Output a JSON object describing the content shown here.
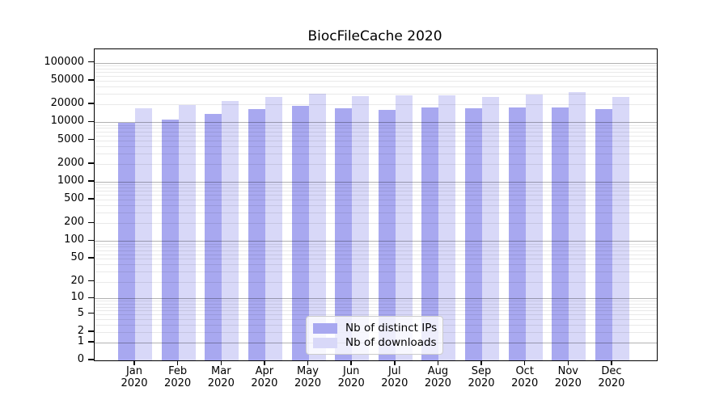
{
  "chart_data": {
    "type": "bar",
    "title": "BiocFileCache 2020",
    "categories": [
      {
        "month": "Jan",
        "year": "2020"
      },
      {
        "month": "Feb",
        "year": "2020"
      },
      {
        "month": "Mar",
        "year": "2020"
      },
      {
        "month": "Apr",
        "year": "2020"
      },
      {
        "month": "May",
        "year": "2020"
      },
      {
        "month": "Jun",
        "year": "2020"
      },
      {
        "month": "Jul",
        "year": "2020"
      },
      {
        "month": "Aug",
        "year": "2020"
      },
      {
        "month": "Sep",
        "year": "2020"
      },
      {
        "month": "Oct",
        "year": "2020"
      },
      {
        "month": "Nov",
        "year": "2020"
      },
      {
        "month": "Dec",
        "year": "2020"
      }
    ],
    "series": [
      {
        "name": "Nb of distinct IPs",
        "color": "#a8a8f0",
        "values": [
          9900,
          11200,
          13800,
          16600,
          18900,
          17000,
          16100,
          17700,
          17200,
          17700,
          17700,
          16500
        ]
      },
      {
        "name": "Nb of downloads",
        "color": "#d8d8f8",
        "values": [
          17000,
          19300,
          22700,
          26600,
          30100,
          27200,
          28000,
          28300,
          26800,
          29500,
          32100,
          26300
        ]
      }
    ],
    "yscale": "log1p",
    "yticks": [
      100000,
      50000,
      20000,
      10000,
      5000,
      2000,
      1000,
      500,
      200,
      100,
      50,
      20,
      10,
      5,
      2,
      1,
      0
    ],
    "ylim": [
      0,
      168000
    ],
    "xlabel": "",
    "ylabel": "",
    "grid": {
      "axis": "y",
      "major": true,
      "minor": true
    },
    "legend_position": "inside-bottom-center"
  },
  "style": {
    "background": "#ffffff",
    "text_color": "#000000",
    "spine_color": "#000000",
    "grid_major_color": "#b5b5b5",
    "grid_minor_color": "#ebebeb",
    "legend_border_color": "#cccccc"
  }
}
